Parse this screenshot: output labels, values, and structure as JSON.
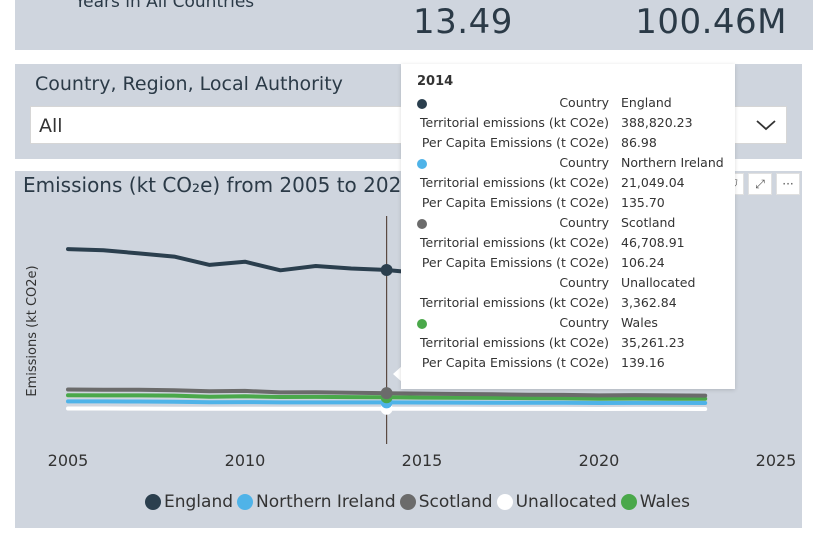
{
  "kpis": {
    "label": "Years in All Countries",
    "value_1": "13.49",
    "value_2": "100.46M"
  },
  "filter": {
    "title": "Country, Region, Local Authority",
    "selected": "All"
  },
  "chart": {
    "title": "Emissions (kt CO₂e) from 2005 to 2023",
    "buttons": {
      "filter": "⛉",
      "focus": "⤢",
      "more": "···"
    }
  },
  "chart_data": {
    "type": "line",
    "title": "Emissions (kt CO₂e) from 2005 to 2023",
    "xlabel": "",
    "ylabel": "Emissions (kt CO2e)",
    "xlim": [
      2005,
      2025
    ],
    "x_ticks": [
      2005,
      2010,
      2015,
      2020,
      2025
    ],
    "ylim": [
      0,
      500000
    ],
    "y_ticks_visible": false,
    "grid": false,
    "legend_position": "bottom",
    "x": [
      2005,
      2006,
      2007,
      2008,
      2009,
      2010,
      2011,
      2012,
      2013,
      2014,
      2015,
      2016,
      2017,
      2018,
      2019,
      2020,
      2021,
      2022,
      2023
    ],
    "highlight_x": 2014,
    "series": [
      {
        "name": "England",
        "color": "#2b3f4e",
        "values": [
          447000,
          444000,
          435000,
          426000,
          403000,
          412000,
          388000,
          400000,
          393000,
          388820,
          380000,
          375000,
          370000,
          365000,
          360000,
          355000,
          360000,
          352000,
          348000
        ]
      },
      {
        "name": "Northern Ireland",
        "color": "#4fb3e8",
        "values": [
          24000,
          23800,
          23500,
          23000,
          21500,
          22000,
          21000,
          21200,
          21100,
          21049,
          20800,
          20500,
          20300,
          20100,
          19900,
          19500,
          19800,
          19600,
          19400
        ]
      },
      {
        "name": "Scotland",
        "color": "#6b6b6b",
        "values": [
          57000,
          56500,
          56000,
          55000,
          52000,
          53000,
          49000,
          49500,
          48000,
          46709,
          45500,
          44500,
          43500,
          42500,
          42000,
          40500,
          41500,
          40500,
          40000
        ]
      },
      {
        "name": "Unallocated",
        "color": "#ffffff",
        "values": [
          4200,
          4100,
          3900,
          3700,
          3500,
          3500,
          3400,
          3400,
          3400,
          3363,
          3300,
          3200,
          3150,
          3100,
          3050,
          2900,
          3000,
          2950,
          2900
        ]
      },
      {
        "name": "Wales",
        "color": "#4aa84a",
        "values": [
          41000,
          40500,
          40500,
          40000,
          37000,
          38000,
          36000,
          36500,
          35800,
          35261,
          34500,
          34000,
          33500,
          33000,
          32500,
          31000,
          32000,
          31500,
          31000
        ]
      }
    ]
  },
  "tooltip": {
    "year": "2014",
    "rows": [
      {
        "label": "Country",
        "value": "England",
        "dot": "#2b3f4e"
      },
      {
        "label": "Territorial emissions (kt CO2e)",
        "value": "388,820.23"
      },
      {
        "label": "Per Capita Emissions (t CO2e)",
        "value": "86.98"
      },
      {
        "label": "Country",
        "value": "Northern Ireland",
        "dot": "#4fb3e8"
      },
      {
        "label": "Territorial emissions (kt CO2e)",
        "value": "21,049.04"
      },
      {
        "label": "Per Capita Emissions (t CO2e)",
        "value": "135.70"
      },
      {
        "label": "Country",
        "value": "Scotland",
        "dot": "#6b6b6b"
      },
      {
        "label": "Territorial emissions (kt CO2e)",
        "value": "46,708.91"
      },
      {
        "label": "Per Capita Emissions (t CO2e)",
        "value": "106.24"
      },
      {
        "label": "Country",
        "value": "Unallocated"
      },
      {
        "label": "Territorial emissions (kt CO2e)",
        "value": "3,362.84"
      },
      {
        "label": "Country",
        "value": "Wales",
        "dot": "#4aa84a"
      },
      {
        "label": "Territorial emissions (kt CO2e)",
        "value": "35,261.23"
      },
      {
        "label": "Per Capita Emissions (t CO2e)",
        "value": "139.16"
      }
    ]
  }
}
